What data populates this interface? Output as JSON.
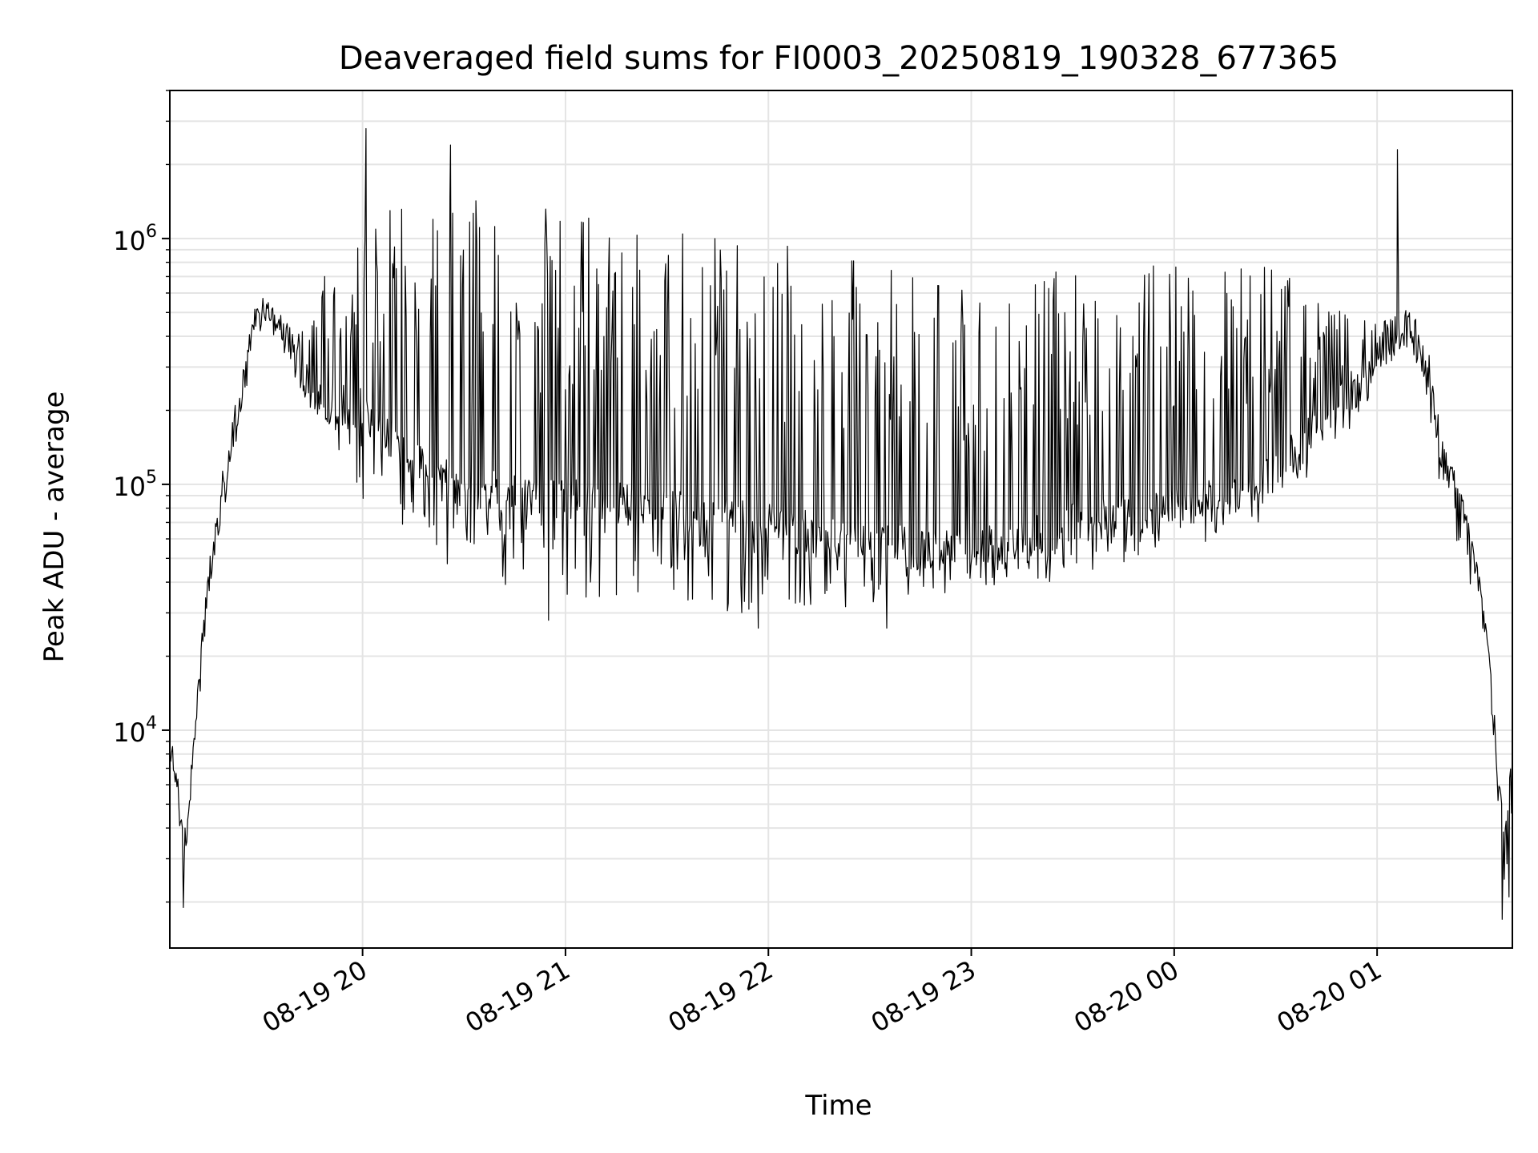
{
  "chart_data": {
    "type": "line",
    "title": "Deaveraged field sums for FI0003_20250819_190328_677365",
    "xlabel": "Time",
    "ylabel": "Peak ADU - average",
    "yscale": "log",
    "xlim": [
      "2025-08-19 19:03",
      "2025-08-20 01:40"
    ],
    "ylim": [
      1300,
      4000000
    ],
    "x_ticks": [
      {
        "value": "2025-08-19 20:00",
        "label": "08-19 20"
      },
      {
        "value": "2025-08-19 21:00",
        "label": "08-19 21"
      },
      {
        "value": "2025-08-19 22:00",
        "label": "08-19 22"
      },
      {
        "value": "2025-08-19 23:00",
        "label": "08-19 23"
      },
      {
        "value": "2025-08-20 00:00",
        "label": "08-20 00"
      },
      {
        "value": "2025-08-20 01:00",
        "label": "08-20 01"
      }
    ],
    "y_ticks": [
      {
        "value": 10000,
        "base": "10",
        "exp": "4"
      },
      {
        "value": 100000,
        "base": "10",
        "exp": "5"
      },
      {
        "value": 1000000,
        "base": "10",
        "exp": "6"
      }
    ],
    "grid": true,
    "line_color": "#000000",
    "series": [
      {
        "envelope": {
          "x": [
            "2025-08-19 19:03",
            "2025-08-19 19:05",
            "2025-08-19 19:07",
            "2025-08-19 19:10",
            "2025-08-19 19:13",
            "2025-08-19 19:16",
            "2025-08-19 19:20",
            "2025-08-19 19:25",
            "2025-08-19 19:28",
            "2025-08-19 19:32",
            "2025-08-19 19:36",
            "2025-08-19 19:40",
            "2025-08-19 19:45",
            "2025-08-19 19:50",
            "2025-08-19 19:55",
            "2025-08-19 20:00",
            "2025-08-19 20:10",
            "2025-08-19 20:20",
            "2025-08-19 20:30",
            "2025-08-19 20:40",
            "2025-08-19 20:50",
            "2025-08-19 21:00",
            "2025-08-19 21:15",
            "2025-08-19 21:30",
            "2025-08-19 21:45",
            "2025-08-19 22:00",
            "2025-08-19 22:15",
            "2025-08-19 22:30",
            "2025-08-19 22:45",
            "2025-08-19 23:00",
            "2025-08-19 23:15",
            "2025-08-19 23:30",
            "2025-08-19 23:45",
            "2025-08-20 00:00",
            "2025-08-20 00:15",
            "2025-08-20 00:30",
            "2025-08-20 00:40",
            "2025-08-20 00:50",
            "2025-08-20 01:00",
            "2025-08-20 01:05",
            "2025-08-20 01:10",
            "2025-08-20 01:15",
            "2025-08-20 01:20",
            "2025-08-20 01:25",
            "2025-08-20 01:30",
            "2025-08-20 01:33",
            "2025-08-20 01:36",
            "2025-08-20 01:38",
            "2025-08-20 01:40"
          ],
          "base": [
            8000,
            7000,
            3000,
            8000,
            25000,
            55000,
            110000,
            250000,
            450000,
            500000,
            430000,
            300000,
            240000,
            220000,
            210000,
            210000,
            150000,
            110000,
            100000,
            95000,
            90000,
            90000,
            85000,
            80000,
            75000,
            70000,
            65000,
            60000,
            55000,
            55000,
            60000,
            70000,
            75000,
            80000,
            90000,
            110000,
            170000,
            220000,
            320000,
            400000,
            450000,
            300000,
            120000,
            80000,
            40000,
            20000,
            6000,
            3500,
            8000
          ],
          "top": [
            9000,
            8000,
            3500,
            9000,
            30000,
            70000,
            150000,
            320000,
            520000,
            560000,
            500000,
            400000,
            500000,
            800000,
            1000000,
            1300000,
            1400000,
            1500000,
            1500000,
            1400000,
            1400000,
            1300000,
            1200000,
            1100000,
            1000000,
            950000,
            900000,
            800000,
            750000,
            700000,
            700000,
            750000,
            800000,
            800000,
            900000,
            800000,
            600000,
            500000,
            450000,
            480000,
            550000,
            320000,
            140000,
            90000,
            45000,
            22000,
            6500,
            4000,
            10000
          ],
          "bottom": [
            7000,
            6000,
            2500,
            7000,
            22000,
            50000,
            90000,
            220000,
            420000,
            470000,
            380000,
            260000,
            200000,
            170000,
            120000,
            80000,
            60000,
            45000,
            40000,
            38000,
            36000,
            35000,
            33000,
            31000,
            30000,
            30000,
            30000,
            32000,
            34000,
            36000,
            38000,
            42000,
            48000,
            55000,
            60000,
            75000,
            110000,
            150000,
            250000,
            330000,
            380000,
            200000,
            60000,
            45000,
            28000,
            15000,
            4000,
            2000,
            5000
          ]
        },
        "peaks": [
          {
            "x": "2025-08-19 20:01",
            "y": 2800000
          },
          {
            "x": "2025-08-19 20:26",
            "y": 2400000
          },
          {
            "x": "2025-08-20 01:06",
            "y": 2300000
          }
        ],
        "dips": [
          {
            "x": "2025-08-19 19:07",
            "y": 1900
          },
          {
            "x": "2025-08-19 20:55",
            "y": 28000
          },
          {
            "x": "2025-08-19 21:57",
            "y": 26000
          },
          {
            "x": "2025-08-19 22:35",
            "y": 26000
          },
          {
            "x": "2025-08-20 01:37",
            "y": 1700
          },
          {
            "x": "2025-08-20 01:39",
            "y": 2100
          }
        ]
      }
    ]
  }
}
